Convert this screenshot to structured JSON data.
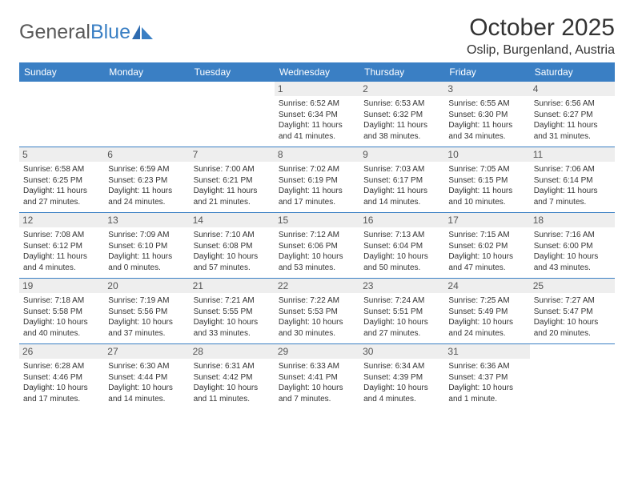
{
  "logo": {
    "text_a": "General",
    "text_b": "Blue"
  },
  "title": "October 2025",
  "location": "Oslip, Burgenland, Austria",
  "colors": {
    "header_bg": "#3a7fc4",
    "daynum_bg": "#eeeeee",
    "text": "#333333",
    "logo_gray": "#595959"
  },
  "weekdays": [
    "Sunday",
    "Monday",
    "Tuesday",
    "Wednesday",
    "Thursday",
    "Friday",
    "Saturday"
  ],
  "weeks": [
    [
      {
        "n": "",
        "lines": []
      },
      {
        "n": "",
        "lines": []
      },
      {
        "n": "",
        "lines": []
      },
      {
        "n": "1",
        "lines": [
          "Sunrise: 6:52 AM",
          "Sunset: 6:34 PM",
          "Daylight: 11 hours",
          "and 41 minutes."
        ]
      },
      {
        "n": "2",
        "lines": [
          "Sunrise: 6:53 AM",
          "Sunset: 6:32 PM",
          "Daylight: 11 hours",
          "and 38 minutes."
        ]
      },
      {
        "n": "3",
        "lines": [
          "Sunrise: 6:55 AM",
          "Sunset: 6:30 PM",
          "Daylight: 11 hours",
          "and 34 minutes."
        ]
      },
      {
        "n": "4",
        "lines": [
          "Sunrise: 6:56 AM",
          "Sunset: 6:27 PM",
          "Daylight: 11 hours",
          "and 31 minutes."
        ]
      }
    ],
    [
      {
        "n": "5",
        "lines": [
          "Sunrise: 6:58 AM",
          "Sunset: 6:25 PM",
          "Daylight: 11 hours",
          "and 27 minutes."
        ]
      },
      {
        "n": "6",
        "lines": [
          "Sunrise: 6:59 AM",
          "Sunset: 6:23 PM",
          "Daylight: 11 hours",
          "and 24 minutes."
        ]
      },
      {
        "n": "7",
        "lines": [
          "Sunrise: 7:00 AM",
          "Sunset: 6:21 PM",
          "Daylight: 11 hours",
          "and 21 minutes."
        ]
      },
      {
        "n": "8",
        "lines": [
          "Sunrise: 7:02 AM",
          "Sunset: 6:19 PM",
          "Daylight: 11 hours",
          "and 17 minutes."
        ]
      },
      {
        "n": "9",
        "lines": [
          "Sunrise: 7:03 AM",
          "Sunset: 6:17 PM",
          "Daylight: 11 hours",
          "and 14 minutes."
        ]
      },
      {
        "n": "10",
        "lines": [
          "Sunrise: 7:05 AM",
          "Sunset: 6:15 PM",
          "Daylight: 11 hours",
          "and 10 minutes."
        ]
      },
      {
        "n": "11",
        "lines": [
          "Sunrise: 7:06 AM",
          "Sunset: 6:14 PM",
          "Daylight: 11 hours",
          "and 7 minutes."
        ]
      }
    ],
    [
      {
        "n": "12",
        "lines": [
          "Sunrise: 7:08 AM",
          "Sunset: 6:12 PM",
          "Daylight: 11 hours",
          "and 4 minutes."
        ]
      },
      {
        "n": "13",
        "lines": [
          "Sunrise: 7:09 AM",
          "Sunset: 6:10 PM",
          "Daylight: 11 hours",
          "and 0 minutes."
        ]
      },
      {
        "n": "14",
        "lines": [
          "Sunrise: 7:10 AM",
          "Sunset: 6:08 PM",
          "Daylight: 10 hours",
          "and 57 minutes."
        ]
      },
      {
        "n": "15",
        "lines": [
          "Sunrise: 7:12 AM",
          "Sunset: 6:06 PM",
          "Daylight: 10 hours",
          "and 53 minutes."
        ]
      },
      {
        "n": "16",
        "lines": [
          "Sunrise: 7:13 AM",
          "Sunset: 6:04 PM",
          "Daylight: 10 hours",
          "and 50 minutes."
        ]
      },
      {
        "n": "17",
        "lines": [
          "Sunrise: 7:15 AM",
          "Sunset: 6:02 PM",
          "Daylight: 10 hours",
          "and 47 minutes."
        ]
      },
      {
        "n": "18",
        "lines": [
          "Sunrise: 7:16 AM",
          "Sunset: 6:00 PM",
          "Daylight: 10 hours",
          "and 43 minutes."
        ]
      }
    ],
    [
      {
        "n": "19",
        "lines": [
          "Sunrise: 7:18 AM",
          "Sunset: 5:58 PM",
          "Daylight: 10 hours",
          "and 40 minutes."
        ]
      },
      {
        "n": "20",
        "lines": [
          "Sunrise: 7:19 AM",
          "Sunset: 5:56 PM",
          "Daylight: 10 hours",
          "and 37 minutes."
        ]
      },
      {
        "n": "21",
        "lines": [
          "Sunrise: 7:21 AM",
          "Sunset: 5:55 PM",
          "Daylight: 10 hours",
          "and 33 minutes."
        ]
      },
      {
        "n": "22",
        "lines": [
          "Sunrise: 7:22 AM",
          "Sunset: 5:53 PM",
          "Daylight: 10 hours",
          "and 30 minutes."
        ]
      },
      {
        "n": "23",
        "lines": [
          "Sunrise: 7:24 AM",
          "Sunset: 5:51 PM",
          "Daylight: 10 hours",
          "and 27 minutes."
        ]
      },
      {
        "n": "24",
        "lines": [
          "Sunrise: 7:25 AM",
          "Sunset: 5:49 PM",
          "Daylight: 10 hours",
          "and 24 minutes."
        ]
      },
      {
        "n": "25",
        "lines": [
          "Sunrise: 7:27 AM",
          "Sunset: 5:47 PM",
          "Daylight: 10 hours",
          "and 20 minutes."
        ]
      }
    ],
    [
      {
        "n": "26",
        "lines": [
          "Sunrise: 6:28 AM",
          "Sunset: 4:46 PM",
          "Daylight: 10 hours",
          "and 17 minutes."
        ]
      },
      {
        "n": "27",
        "lines": [
          "Sunrise: 6:30 AM",
          "Sunset: 4:44 PM",
          "Daylight: 10 hours",
          "and 14 minutes."
        ]
      },
      {
        "n": "28",
        "lines": [
          "Sunrise: 6:31 AM",
          "Sunset: 4:42 PM",
          "Daylight: 10 hours",
          "and 11 minutes."
        ]
      },
      {
        "n": "29",
        "lines": [
          "Sunrise: 6:33 AM",
          "Sunset: 4:41 PM",
          "Daylight: 10 hours",
          "and 7 minutes."
        ]
      },
      {
        "n": "30",
        "lines": [
          "Sunrise: 6:34 AM",
          "Sunset: 4:39 PM",
          "Daylight: 10 hours",
          "and 4 minutes."
        ]
      },
      {
        "n": "31",
        "lines": [
          "Sunrise: 6:36 AM",
          "Sunset: 4:37 PM",
          "Daylight: 10 hours",
          "and 1 minute."
        ]
      },
      {
        "n": "",
        "lines": []
      }
    ]
  ]
}
